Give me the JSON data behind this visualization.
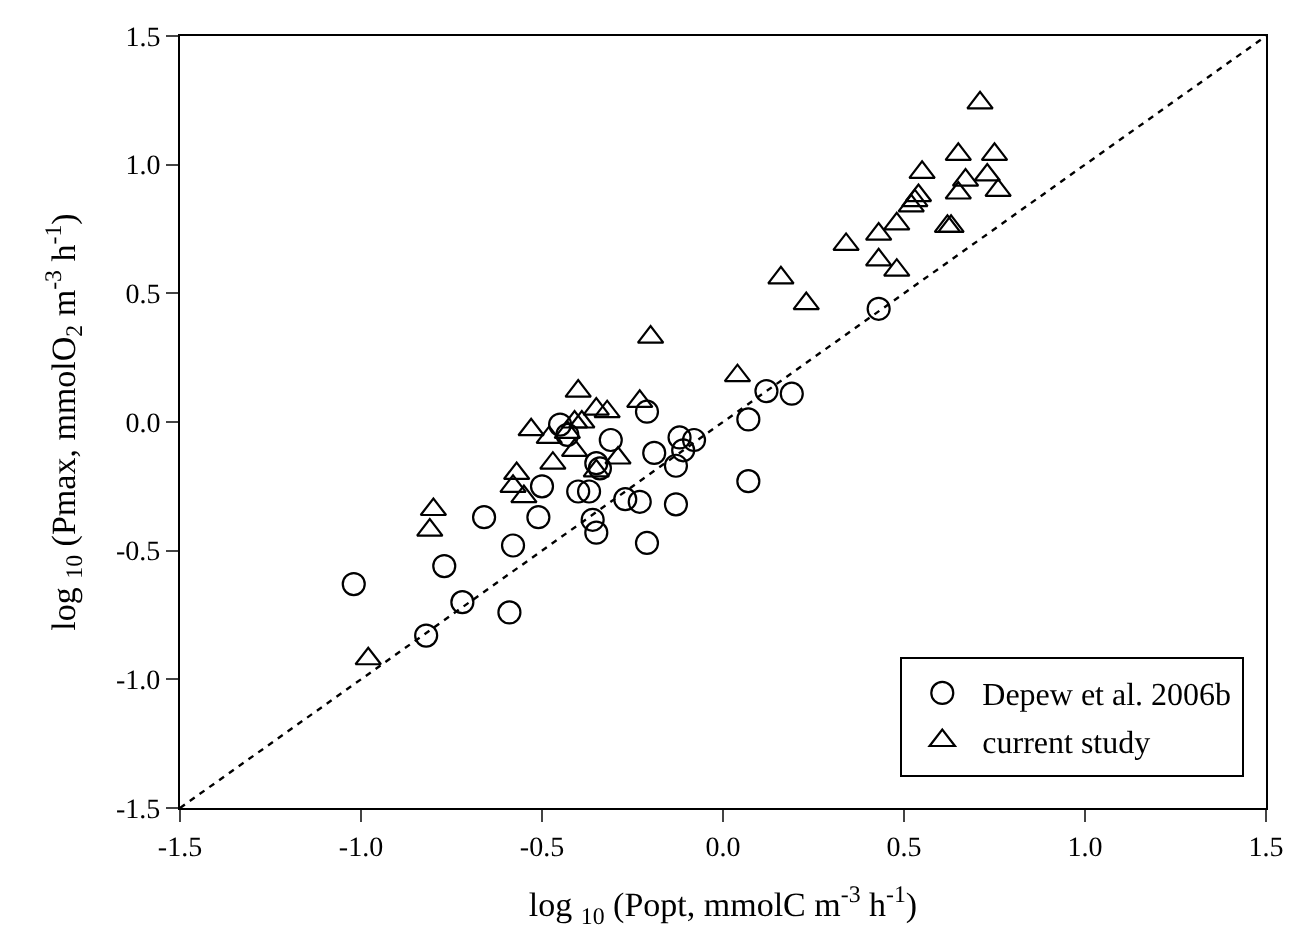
{
  "chart_data": {
    "type": "scatter",
    "xlabel": "log $_{10}$ (Popt, mmolC m$^{-3}$ h$^{-1}$)",
    "ylabel": "log $_{10}$ (Pmax, mmolO$_{2}$ m$^{-3}$ h$^{-1}$)",
    "xlim": [
      -1.5,
      1.5
    ],
    "ylim": [
      -1.5,
      1.5
    ],
    "xticks": [
      -1.5,
      {
        "value": -1,
        "label": "-1.0"
      },
      -0.5,
      {
        "value": 0,
        "label": "0.0"
      },
      0.5,
      {
        "value": 1,
        "label": "1.0"
      },
      1.5
    ],
    "yticks": [
      -1.5,
      {
        "value": -1,
        "label": "-1.0"
      },
      -0.5,
      {
        "value": 0,
        "label": "0.0"
      },
      0.5,
      {
        "value": 1,
        "label": "1.0"
      },
      1.5
    ],
    "legend": "bottom right",
    "series": [
      {
        "name": "Depew et al. 2006b",
        "color": "#000000",
        "marker": "circle",
        "x": [
          -1.02,
          -0.82,
          -0.77,
          -0.72,
          -0.66,
          -0.59,
          -0.58,
          -0.5,
          -0.51,
          -0.45,
          -0.43,
          -0.4,
          -0.37,
          -0.36,
          -0.35,
          -0.35,
          -0.34,
          -0.31,
          -0.27,
          -0.23,
          -0.21,
          -0.21,
          -0.19,
          -0.13,
          -0.13,
          -0.12,
          -0.11,
          -0.08,
          0.07,
          0.07,
          0.12,
          0.19,
          0.43
        ],
        "values": [
          -0.63,
          -0.83,
          -0.56,
          -0.7,
          -0.37,
          -0.74,
          -0.48,
          -0.25,
          -0.37,
          -0.01,
          -0.05,
          -0.27,
          -0.27,
          -0.38,
          -0.43,
          -0.16,
          -0.18,
          -0.07,
          -0.3,
          -0.31,
          -0.47,
          0.04,
          -0.12,
          -0.32,
          -0.17,
          -0.06,
          -0.11,
          -0.07,
          0.01,
          -0.23,
          0.12,
          0.11,
          0.44
        ]
      },
      {
        "name": "current study",
        "color": "#000000",
        "marker": "triangle",
        "x": [
          -0.98,
          -0.81,
          -0.8,
          -0.57,
          -0.58,
          -0.55,
          -0.53,
          -0.48,
          -0.47,
          -0.43,
          -0.41,
          -0.4,
          -0.41,
          -0.39,
          -0.35,
          -0.32,
          -0.35,
          -0.29,
          -0.23,
          -0.2,
          0.04,
          0.23,
          0.16,
          0.34,
          0.43,
          0.43,
          0.48,
          0.48,
          0.52,
          0.53,
          0.54,
          0.55,
          0.62,
          0.63,
          0.65,
          0.65,
          0.67,
          0.71,
          0.73,
          0.75,
          0.76
        ],
        "values": [
          -0.92,
          -0.42,
          -0.34,
          -0.2,
          -0.25,
          -0.29,
          -0.03,
          -0.06,
          -0.16,
          -0.04,
          -0.11,
          0.12,
          0.0,
          0.0,
          0.05,
          0.04,
          -0.19,
          -0.14,
          0.08,
          0.33,
          0.18,
          0.46,
          0.56,
          0.69,
          0.63,
          0.73,
          0.59,
          0.77,
          0.84,
          0.86,
          0.88,
          0.97,
          0.76,
          0.76,
          1.04,
          0.89,
          0.94,
          1.24,
          0.96,
          1.04,
          0.9
        ]
      },
      {
        "type": "line",
        "color": "#000000",
        "line_style": "dotted",
        "x": [
          -1.5,
          1.5
        ],
        "values": [
          -1.5,
          1.5
        ]
      }
    ]
  }
}
